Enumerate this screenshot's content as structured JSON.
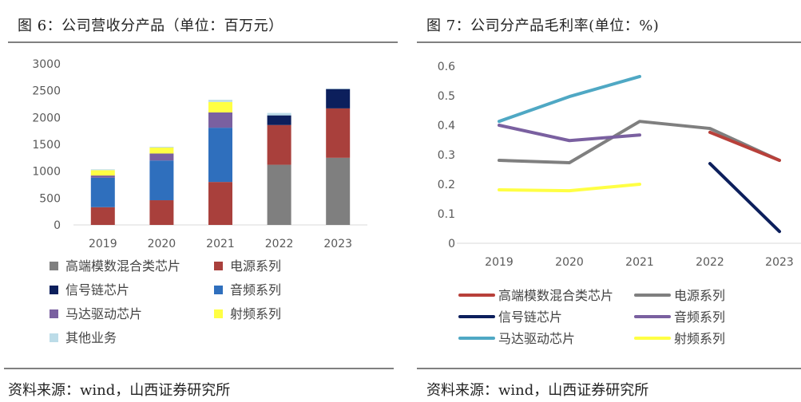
{
  "figures": {
    "left": {
      "title": "图 6：公司营收分产品（单位：百万元）",
      "source": "资料来源：wind，山西证券研究所"
    },
    "right": {
      "title": "图 7：公司分产品毛利率(单位：%)",
      "source": "资料来源：wind，山西证券研究所"
    }
  },
  "chart_data": [
    {
      "type": "bar",
      "stacked": true,
      "title": "公司营收分产品（单位：百万元）",
      "xlabel": "",
      "ylabel": "",
      "categories": [
        "2019",
        "2020",
        "2021",
        "2022",
        "2023"
      ],
      "ylim": [
        0,
        3000
      ],
      "yticks": [
        0,
        500,
        1000,
        1500,
        2000,
        2500,
        3000
      ],
      "grid": false,
      "legend_position": "bottom",
      "series": [
        {
          "name": "高端模数混合类芯片",
          "color": "#7f7f7f",
          "values": [
            0,
            0,
            0,
            1120,
            1250
          ]
        },
        {
          "name": "电源系列",
          "color": "#a9403c",
          "values": [
            330,
            460,
            800,
            740,
            920
          ]
        },
        {
          "name": "信号链芯片",
          "color": "#0c1f5c",
          "values": [
            0,
            0,
            0,
            180,
            360
          ]
        },
        {
          "name": "音频系列",
          "color": "#2f6fbd",
          "values": [
            550,
            740,
            1010,
            0,
            0
          ]
        },
        {
          "name": "马达驱动芯片",
          "color": "#7a60a0",
          "values": [
            40,
            130,
            285,
            0,
            0
          ]
        },
        {
          "name": "射频系列",
          "color": "#ffff44",
          "values": [
            100,
            110,
            195,
            0,
            0
          ]
        },
        {
          "name": "其他业务",
          "color": "#bcdce8",
          "values": [
            15,
            15,
            40,
            45,
            10
          ]
        }
      ],
      "legend": [
        {
          "name": "高端模数混合类芯片",
          "color": "#7f7f7f"
        },
        {
          "name": "电源系列",
          "color": "#a9403c"
        },
        {
          "name": "信号链芯片",
          "color": "#0c1f5c"
        },
        {
          "name": "音频系列",
          "color": "#2f6fbd"
        },
        {
          "name": "马达驱动芯片",
          "color": "#7a60a0"
        },
        {
          "name": "射频系列",
          "color": "#ffff44"
        },
        {
          "name": "其他业务",
          "color": "#bcdce8"
        }
      ]
    },
    {
      "type": "line",
      "title": "公司分产品毛利率(单位：%)",
      "xlabel": "",
      "ylabel": "",
      "categories": [
        "2019",
        "2020",
        "2021",
        "2022",
        "2023"
      ],
      "ylim": [
        0,
        0.6
      ],
      "yticks": [
        "0",
        "0.1",
        "0.2",
        "0.3",
        "0.4",
        "0.5",
        "0.6"
      ],
      "grid": false,
      "legend_position": "bottom",
      "series": [
        {
          "name": "高端模数混合类芯片",
          "color": "#b8403a",
          "values": [
            null,
            null,
            null,
            0.376,
            0.281
          ]
        },
        {
          "name": "电源系列",
          "color": "#7f7f7f",
          "values": [
            0.281,
            0.273,
            0.413,
            0.389,
            0.281
          ]
        },
        {
          "name": "信号链芯片",
          "color": "#0c1f5c",
          "values": [
            null,
            null,
            null,
            0.27,
            0.04
          ]
        },
        {
          "name": "音频系列",
          "color": "#7a60a0",
          "values": [
            0.4,
            0.348,
            0.367,
            null,
            null
          ]
        },
        {
          "name": "马达驱动芯片",
          "color": "#4fa8c4",
          "values": [
            0.413,
            0.497,
            0.565,
            null,
            null
          ]
        },
        {
          "name": "射频系列",
          "color": "#ffff44",
          "values": [
            0.181,
            0.178,
            0.2,
            null,
            null
          ]
        }
      ]
    }
  ]
}
